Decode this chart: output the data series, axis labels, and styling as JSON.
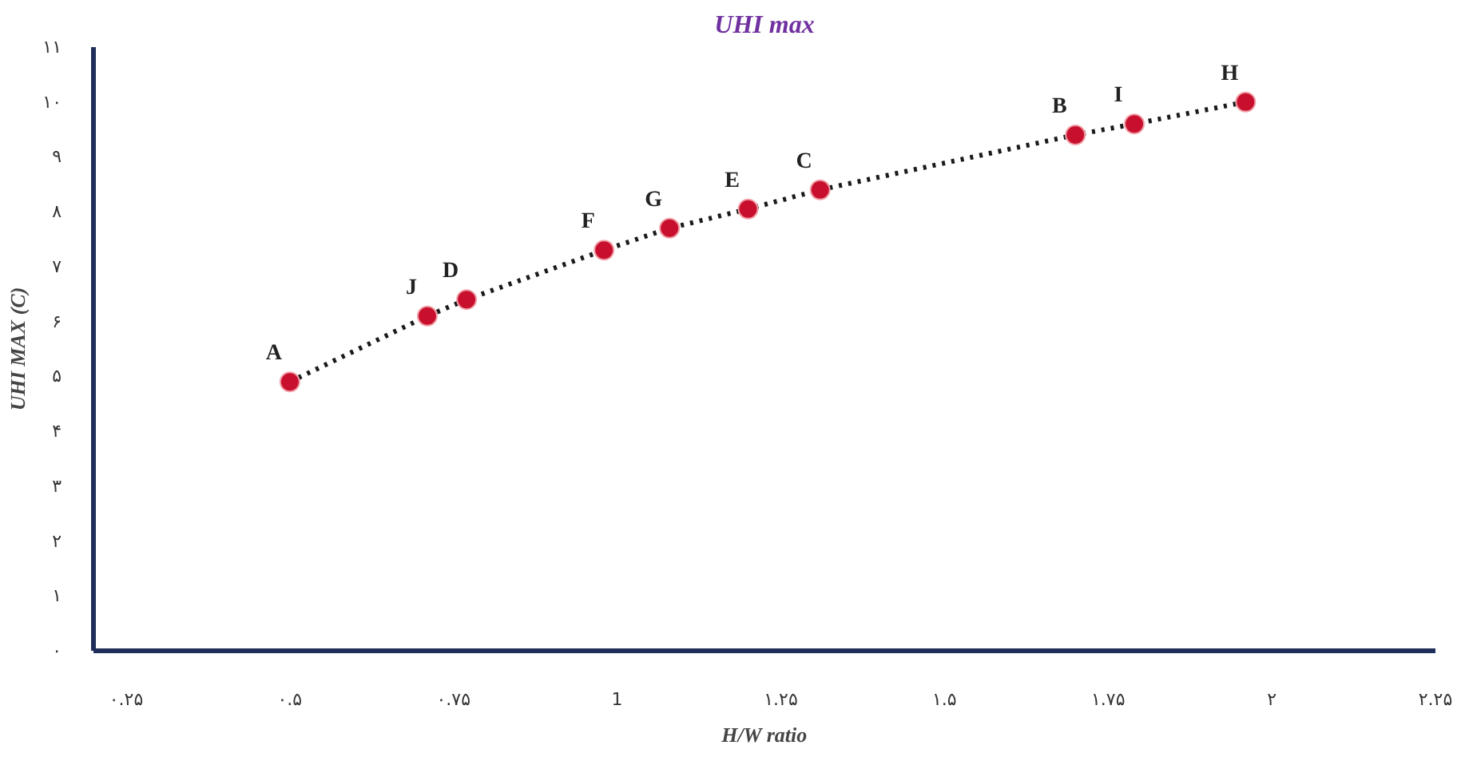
{
  "chart_data": {
    "type": "scatter",
    "title": "UHI max",
    "xlabel": "H/W ratio",
    "ylabel": "UHI MAX (C)",
    "x": [
      0.5,
      0.71,
      0.77,
      0.98,
      1.08,
      1.2,
      1.31,
      1.7,
      1.79,
      1.96
    ],
    "series": [
      {
        "type": "line",
        "color": "#1a1a1a",
        "line_style": "dotted",
        "marker": "none",
        "values": [
          4.9,
          6.1,
          6.4,
          7.3,
          7.7,
          8.05,
          8.4,
          9.4,
          9.6,
          10.0
        ]
      },
      {
        "color": "#c8102e",
        "marker": "circle",
        "values": [
          4.9,
          6.1,
          6.4,
          7.3,
          7.7,
          8.05,
          8.4,
          9.4,
          9.6,
          10.0
        ]
      }
    ],
    "annotations": [
      {
        "text": "A",
        "x": 0.5,
        "y": 4.9
      },
      {
        "text": "J",
        "x": 0.71,
        "y": 6.1
      },
      {
        "text": "D",
        "x": 0.77,
        "y": 6.4
      },
      {
        "text": "F",
        "x": 0.98,
        "y": 7.3
      },
      {
        "text": "G",
        "x": 1.08,
        "y": 7.7
      },
      {
        "text": "E",
        "x": 1.2,
        "y": 8.05
      },
      {
        "text": "C",
        "x": 1.31,
        "y": 8.4
      },
      {
        "text": "B",
        "x": 1.7,
        "y": 9.4
      },
      {
        "text": "I",
        "x": 1.79,
        "y": 9.6
      },
      {
        "text": "H",
        "x": 1.96,
        "y": 10.0
      }
    ],
    "xlim": [
      0.2,
      2.25
    ],
    "ylim": [
      0,
      11
    ],
    "xticks": [
      {
        "value": 0.25,
        "label": "۰.۲۵"
      },
      {
        "value": 0.5,
        "label": "۰.۵"
      },
      {
        "value": 0.75,
        "label": "۰.۷۵"
      },
      {
        "value": 1,
        "label": "1"
      },
      {
        "value": 1.25,
        "label": "۱.۲۵"
      },
      {
        "value": 1.5,
        "label": "۱.۵"
      },
      {
        "value": 1.75,
        "label": "۱.۷۵"
      },
      {
        "value": 2,
        "label": "۲"
      },
      {
        "value": 2.25,
        "label": "۲.۲۵"
      }
    ],
    "yticks": [
      {
        "value": 0,
        "label": "۰"
      },
      {
        "value": 1,
        "label": "۱"
      },
      {
        "value": 2,
        "label": "۲"
      },
      {
        "value": 3,
        "label": "۳"
      },
      {
        "value": 4,
        "label": "۴"
      },
      {
        "value": 5,
        "label": "۵"
      },
      {
        "value": 6,
        "label": "۶"
      },
      {
        "value": 7,
        "label": "۷"
      },
      {
        "value": 8,
        "label": "۸"
      },
      {
        "value": 9,
        "label": "۹"
      },
      {
        "value": 10,
        "label": "۱۰"
      },
      {
        "value": 11,
        "label": "۱۱"
      }
    ]
  }
}
